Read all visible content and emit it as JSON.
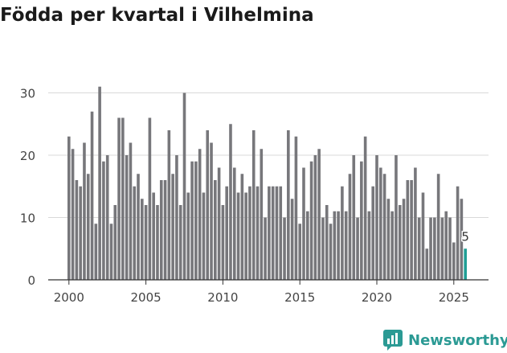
{
  "title": "Födda per kvartal i Vilhelmina",
  "brand": {
    "name": "Newsworthy",
    "color": "#2b9a94"
  },
  "colors": {
    "bar": "#77777b",
    "highlight": "#1f9e94",
    "grid": "#d9d9d9",
    "axis": "#333333",
    "text": "#444444"
  },
  "chart_data": {
    "type": "bar",
    "title": "Födda per kvartal i Vilhelmina",
    "xlabel": "",
    "ylabel": "",
    "ylim": [
      0,
      35
    ],
    "yticks": [
      0,
      10,
      20,
      30
    ],
    "xticks": [
      2000,
      2005,
      2010,
      2015,
      2020,
      2025
    ],
    "grid": true,
    "start": {
      "year": 2000,
      "quarter": 1
    },
    "values": [
      23,
      21,
      16,
      15,
      22,
      17,
      27,
      9,
      31,
      19,
      20,
      9,
      12,
      26,
      26,
      20,
      22,
      15,
      17,
      13,
      12,
      26,
      14,
      12,
      16,
      16,
      24,
      17,
      20,
      12,
      30,
      14,
      19,
      19,
      21,
      14,
      24,
      22,
      16,
      18,
      12,
      15,
      25,
      18,
      14,
      17,
      14,
      15,
      24,
      15,
      21,
      10,
      15,
      15,
      15,
      15,
      10,
      24,
      13,
      23,
      9,
      18,
      11,
      19,
      20,
      21,
      10,
      12,
      9,
      11,
      11,
      15,
      11,
      17,
      20,
      10,
      19,
      23,
      11,
      15,
      20,
      18,
      17,
      13,
      11,
      20,
      12,
      13,
      16,
      16,
      18,
      10,
      14,
      5,
      10,
      10,
      17,
      10,
      11,
      10,
      6,
      15,
      13,
      5
    ],
    "highlight_last": true,
    "annotation": {
      "text": "5"
    }
  }
}
